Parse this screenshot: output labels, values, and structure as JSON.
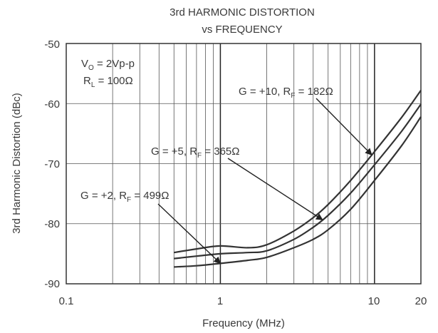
{
  "chart_data": {
    "type": "line",
    "title": "3rd HARMONIC DISTORTION",
    "subtitle": "vs FREQUENCY",
    "xlabel": "Frequency (MHz)",
    "ylabel": "3rd Harmonic Distortion (dBc)",
    "x_scale": "log",
    "xlim": [
      0.1,
      20
    ],
    "ylim": [
      -90,
      -50
    ],
    "x_tick_labels": [
      "0.1",
      "1",
      "10",
      "20"
    ],
    "x_ticks": [
      0.1,
      1,
      10,
      20
    ],
    "y_tick_labels": [
      "-50",
      "-60",
      "-70",
      "-80",
      "-90"
    ],
    "y_ticks": [
      -50,
      -60,
      -70,
      -80,
      -90
    ],
    "grid": true,
    "conditions": {
      "vo": {
        "main": "V",
        "sub": "O",
        "rest": " = 2Vp-p"
      },
      "rl": {
        "main": "R",
        "sub": "L",
        "rest": " = 100Ω"
      }
    },
    "series": [
      {
        "label_pre": "G = +10, R",
        "label_sub": "F",
        "label_post": " = 182Ω",
        "x": [
          0.5,
          0.7,
          1,
          1.5,
          2,
          3,
          4,
          5,
          7,
          10,
          15,
          20
        ],
        "y": [
          -84.8,
          -84.2,
          -83.7,
          -84.0,
          -83.5,
          -81.2,
          -79.0,
          -76.8,
          -72.8,
          -68.0,
          -62.3,
          -57.8
        ]
      },
      {
        "label_pre": "G = +5, R",
        "label_sub": "F",
        "label_post": " = 365Ω",
        "x": [
          0.5,
          0.7,
          1,
          1.5,
          2,
          3,
          4,
          5,
          7,
          10,
          15,
          20
        ],
        "y": [
          -85.8,
          -85.4,
          -85.0,
          -84.8,
          -84.5,
          -82.6,
          -80.6,
          -78.6,
          -74.9,
          -70.2,
          -64.6,
          -60.1
        ]
      },
      {
        "label_pre": "G = +2, R",
        "label_sub": "F",
        "label_post": " = 499Ω",
        "x": [
          0.5,
          0.7,
          1,
          1.5,
          2,
          3,
          4,
          5,
          7,
          10,
          15,
          20
        ],
        "y": [
          -87.2,
          -87.0,
          -86.6,
          -86.1,
          -85.6,
          -84.0,
          -82.6,
          -81.0,
          -77.6,
          -72.8,
          -67.0,
          -62.2
        ]
      }
    ],
    "colors": {
      "line": "#333333",
      "grid": "#555555",
      "text": "#3a3a3a"
    }
  }
}
